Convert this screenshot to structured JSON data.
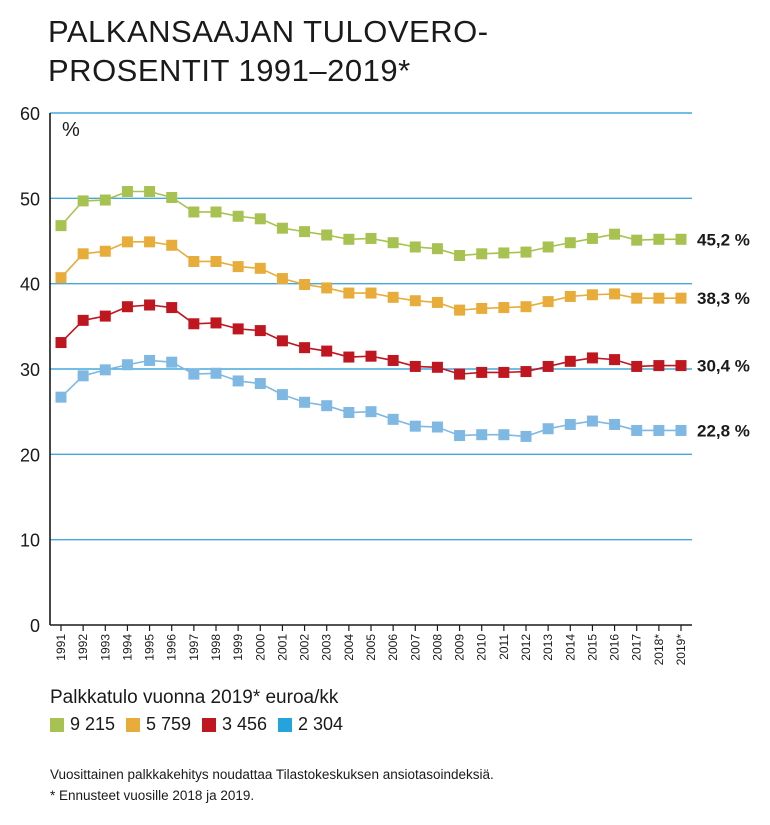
{
  "title": [
    "PALKANSAAJAN TULOVERO-",
    "PROSENTIT 1991–2019*"
  ],
  "chart_data": {
    "type": "line",
    "ylabel": "%",
    "ylim": [
      0,
      60
    ],
    "yticks": [
      "0",
      "10",
      "20",
      "30",
      "40",
      "50",
      "60"
    ],
    "categories": [
      "1991",
      "1992",
      "1993",
      "1994",
      "1995",
      "1996",
      "1997",
      "1998",
      "1999",
      "2000",
      "2001",
      "2002",
      "2003",
      "2004",
      "2005",
      "2006",
      "2007",
      "2008",
      "2009",
      "2010",
      "2011",
      "2012",
      "2013",
      "2014",
      "2015",
      "2016",
      "2017",
      "2018*",
      "2019*"
    ],
    "grid": "horizontal",
    "series": [
      {
        "name": "9 215",
        "color": "#a7c251",
        "values": [
          46.8,
          49.7,
          49.8,
          50.8,
          50.8,
          50.1,
          48.4,
          48.4,
          47.9,
          47.6,
          46.5,
          46.1,
          45.7,
          45.2,
          45.3,
          44.8,
          44.3,
          44.1,
          43.3,
          43.5,
          43.6,
          43.7,
          44.3,
          44.8,
          45.3,
          45.8,
          45.1,
          45.2,
          45.2
        ],
        "end_label": "45,2 %"
      },
      {
        "name": "5 759",
        "color": "#e8ac3b",
        "values": [
          40.7,
          43.5,
          43.8,
          44.9,
          44.9,
          44.5,
          42.6,
          42.6,
          42.0,
          41.8,
          40.6,
          39.9,
          39.5,
          38.9,
          38.9,
          38.4,
          38.0,
          37.8,
          36.9,
          37.1,
          37.2,
          37.3,
          37.9,
          38.5,
          38.7,
          38.8,
          38.3,
          38.3,
          38.3
        ],
        "end_label": "38,3 %"
      },
      {
        "name": "3 456",
        "color": "#c0161f",
        "values": [
          33.1,
          35.7,
          36.2,
          37.3,
          37.5,
          37.2,
          35.3,
          35.4,
          34.7,
          34.5,
          33.3,
          32.5,
          32.1,
          31.4,
          31.5,
          31.0,
          30.3,
          30.2,
          29.4,
          29.6,
          29.6,
          29.7,
          30.3,
          30.9,
          31.3,
          31.1,
          30.3,
          30.4,
          30.4
        ],
        "end_label": "30,4 %"
      },
      {
        "name": "2 304",
        "color": "#7fb8e2",
        "values": [
          26.7,
          29.2,
          29.9,
          30.5,
          31.0,
          30.8,
          29.4,
          29.5,
          28.6,
          28.3,
          27.0,
          26.1,
          25.7,
          24.9,
          25.0,
          24.1,
          23.3,
          23.2,
          22.2,
          22.3,
          22.3,
          22.1,
          23.0,
          23.5,
          23.9,
          23.5,
          22.8,
          22.8,
          22.8
        ],
        "end_label": "22,8 %"
      }
    ]
  },
  "legend": {
    "title": "Palkkatulo vuonna 2019* euroa/kk",
    "items": [
      {
        "label": "9 215",
        "color": "#a7c251"
      },
      {
        "label": "5 759",
        "color": "#e8ac3b"
      },
      {
        "label": "3 456",
        "color": "#c0161f"
      },
      {
        "label": "2 304",
        "color": "#24a3dc"
      }
    ]
  },
  "notes": [
    "Vuosittainen palkkakehitys noudattaa Tilastokeskuksen ansiotasoindeksiä.",
    "* Ennusteet vuosille 2018 ja 2019."
  ]
}
